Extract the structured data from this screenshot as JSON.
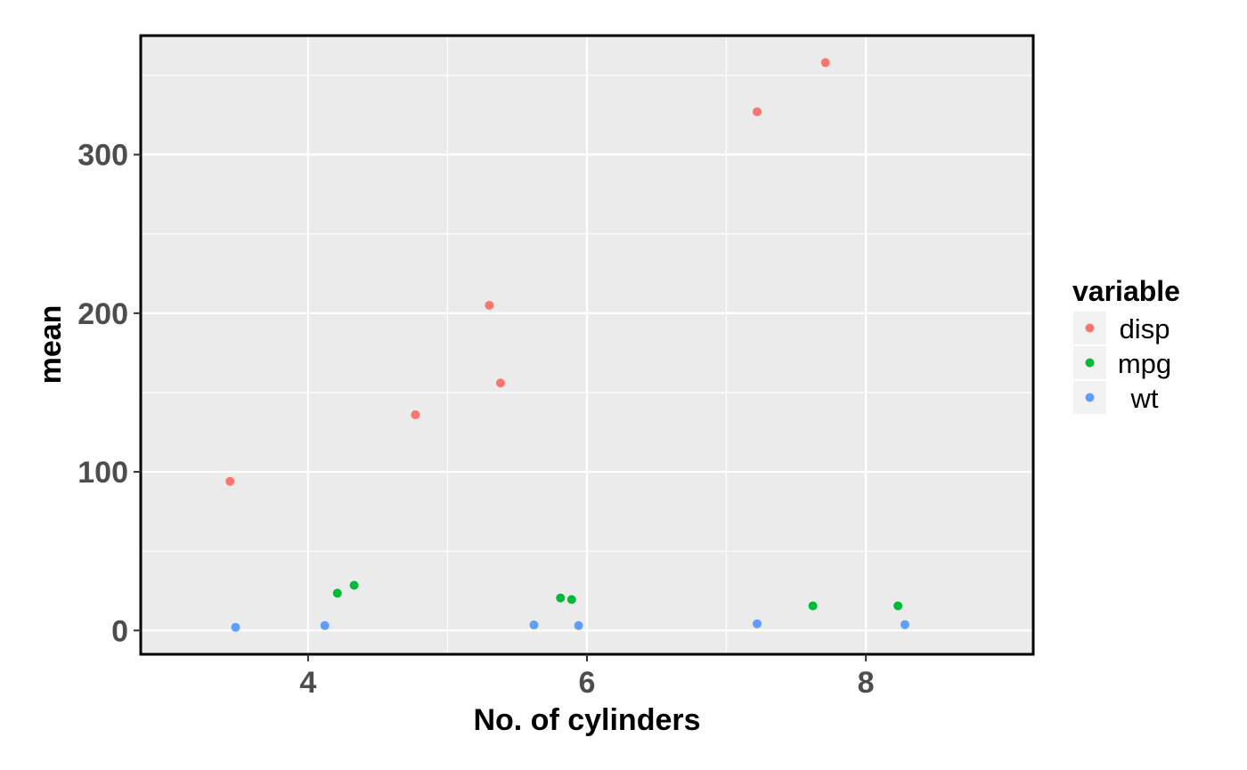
{
  "chart_data": {
    "type": "scatter",
    "title": "",
    "xlabel": "No. of cylinders",
    "ylabel": "mean",
    "xlim": [
      2.8,
      9.2
    ],
    "ylim": [
      -15,
      375
    ],
    "x_ticks": [
      4,
      6,
      8
    ],
    "x_tick_labels": [
      "4",
      "6",
      "8"
    ],
    "y_ticks": [
      0,
      100,
      200,
      300
    ],
    "y_tick_labels": [
      "0",
      "100",
      "200",
      "300"
    ],
    "grid": true,
    "legend": {
      "title": "variable",
      "placement": "right"
    },
    "series": [
      {
        "name": "disp",
        "color": "#F8766D",
        "points": [
          {
            "x": 3.44,
            "y": 94
          },
          {
            "x": 4.77,
            "y": 136
          },
          {
            "x": 5.3,
            "y": 205
          },
          {
            "x": 5.38,
            "y": 156
          },
          {
            "x": 7.22,
            "y": 327
          },
          {
            "x": 7.71,
            "y": 358
          }
        ]
      },
      {
        "name": "mpg",
        "color": "#00BA38",
        "points": [
          {
            "x": 4.21,
            "y": 23.5
          },
          {
            "x": 4.33,
            "y": 28.5
          },
          {
            "x": 5.81,
            "y": 20.5
          },
          {
            "x": 5.89,
            "y": 19.5
          },
          {
            "x": 7.62,
            "y": 15.5
          },
          {
            "x": 8.23,
            "y": 15.5
          }
        ]
      },
      {
        "name": "wt",
        "color": "#619CFF",
        "points": [
          {
            "x": 3.48,
            "y": 2.0
          },
          {
            "x": 4.12,
            "y": 3.1
          },
          {
            "x": 5.62,
            "y": 3.5
          },
          {
            "x": 5.94,
            "y": 3.1
          },
          {
            "x": 7.22,
            "y": 4.2
          },
          {
            "x": 8.28,
            "y": 3.7
          }
        ]
      }
    ]
  }
}
